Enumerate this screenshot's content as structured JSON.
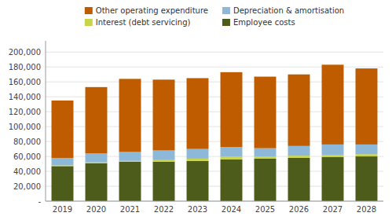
{
  "chart_data": {
    "type": "bar",
    "stacked": true,
    "grid": true,
    "legend": "top",
    "categories": [
      "2019",
      "2020",
      "2021",
      "2022",
      "2023",
      "2024",
      "2025",
      "2026",
      "2027",
      "2028"
    ],
    "series": [
      {
        "name": "Employee costs",
        "color": "#4d5c1a",
        "values": [
          47000,
          51000,
          53000,
          53000,
          54000,
          56000,
          57000,
          58000,
          59000,
          60000
        ]
      },
      {
        "name": "Interest (debt servicing)",
        "color": "#c8d44a",
        "values": [
          1000,
          1000,
          1000,
          2000,
          3000,
          3500,
          3000,
          3000,
          3000,
          3000
        ]
      },
      {
        "name": "Depreciation & amortisation",
        "color": "#8db8d8",
        "values": [
          10000,
          12000,
          12000,
          13000,
          13000,
          13000,
          11000,
          13000,
          14000,
          13000
        ]
      },
      {
        "name": "Other operating expenditure",
        "color": "#bf5c00",
        "values": [
          77000,
          89000,
          98000,
          95000,
          95000,
          100500,
          96000,
          96000,
          107000,
          102000
        ]
      }
    ],
    "ylim": [
      0,
      215000
    ],
    "yticks": [
      {
        "value": 0,
        "label": "-"
      },
      {
        "value": 20000,
        "label": "20,000"
      },
      {
        "value": 40000,
        "label": "40,000"
      },
      {
        "value": 60000,
        "label": "60,000"
      },
      {
        "value": 80000,
        "label": "80,000"
      },
      {
        "value": 100000,
        "label": "100,000"
      },
      {
        "value": 120000,
        "label": "120,000"
      },
      {
        "value": 140000,
        "label": "140,000"
      },
      {
        "value": 160000,
        "label": "160,000"
      },
      {
        "value": 180000,
        "label": "180,000"
      },
      {
        "value": 200000,
        "label": "200,000"
      }
    ]
  }
}
